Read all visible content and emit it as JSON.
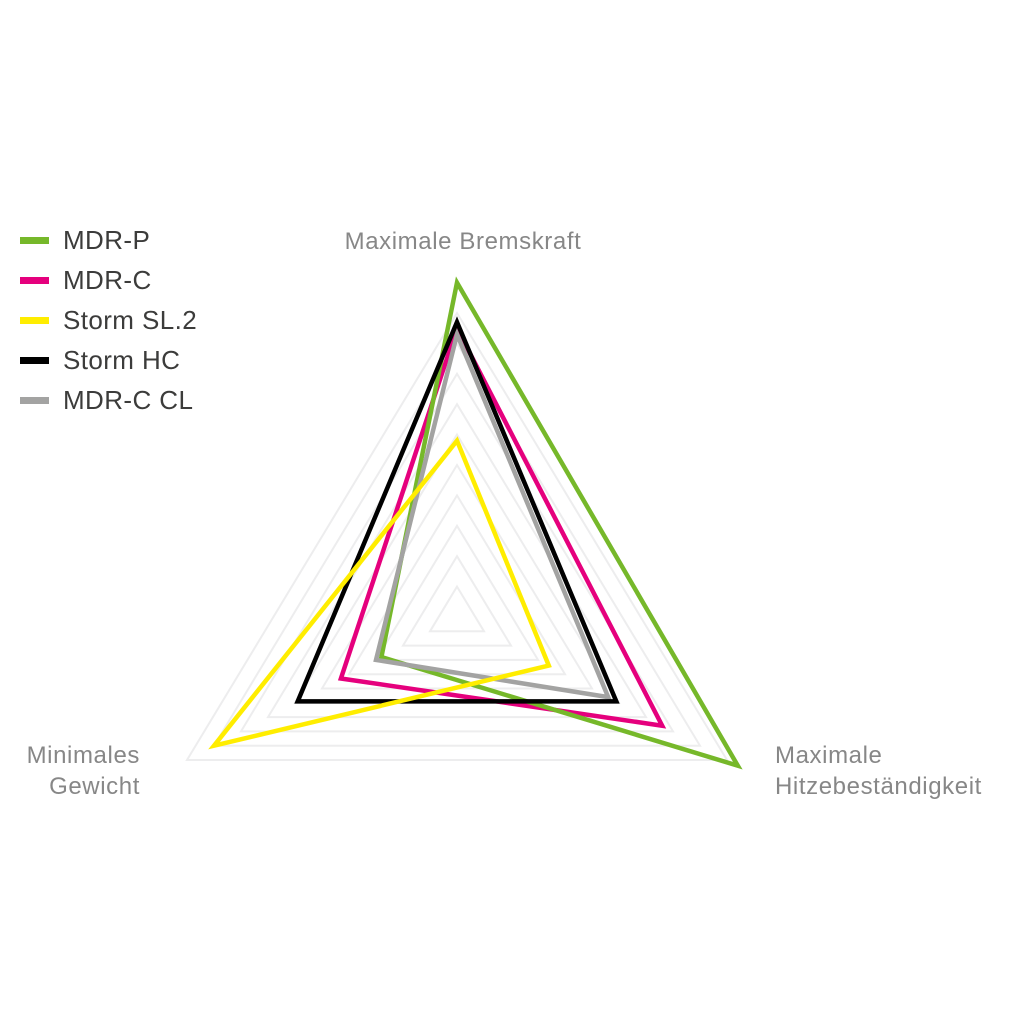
{
  "chart_data": {
    "type": "radar",
    "shape": "triangle",
    "axes": [
      {
        "id": "bremskraft",
        "label": "Maximale Bremskraft",
        "position": "top"
      },
      {
        "id": "hitze",
        "label": "Maximale Hitzebeständigkeit",
        "position": "bottom-right"
      },
      {
        "id": "gewicht",
        "label": "Minimales Gewicht",
        "position": "bottom-left"
      }
    ],
    "scale": {
      "min": 0,
      "max": 10,
      "grid_levels": 10,
      "grid_visible": true
    },
    "series": [
      {
        "name": "MDR-P",
        "color": "#76B82A",
        "values": [
          11.0,
          10.4,
          2.8
        ]
      },
      {
        "name": "MDR-C",
        "color": "#E5007D",
        "values": [
          9.5,
          7.6,
          4.3
        ]
      },
      {
        "name": "Storm SL.2",
        "color": "#FFED00",
        "values": [
          5.8,
          3.4,
          9.0
        ]
      },
      {
        "name": "Storm HC",
        "color": "#000000",
        "values": [
          9.7,
          5.9,
          5.9
        ]
      },
      {
        "name": "MDR-C CL",
        "color": "#A3A3A2",
        "values": [
          9.3,
          5.6,
          3.0
        ]
      }
    ],
    "draw_order": [
      "MDR-C",
      "MDR-P",
      "MDR-C CL",
      "Storm HC",
      "Storm SL.2"
    ],
    "legend_position": "top-left",
    "colors": {
      "grid": "#EDEDEE",
      "axis_label": "#878787",
      "legend_text": "#3C3C3B",
      "background": "#FFFFFF"
    }
  }
}
